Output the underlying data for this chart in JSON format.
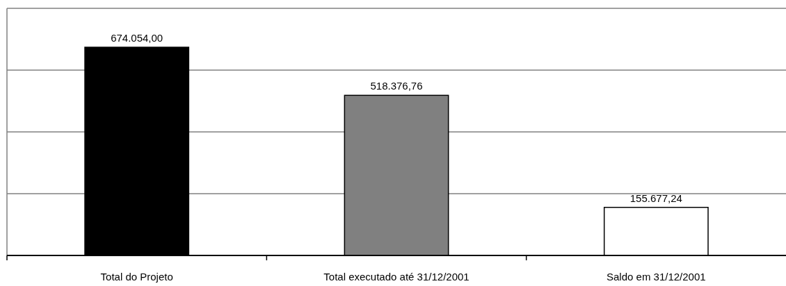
{
  "chart_data": {
    "type": "bar",
    "categories": [
      "Total do Projeto",
      "Total executado até 31/12/2001",
      "Saldo em 31/12/2001"
    ],
    "values": [
      674054,
      518376.76,
      155677.24
    ],
    "colors": [
      "#000000",
      "#808080",
      "#ffffff"
    ],
    "value_labels": [
      "674.054,00",
      "518.376,76",
      "155.677,24"
    ],
    "ylim": [
      0,
      800000
    ],
    "yticks": [
      {
        "value": 0,
        "label": null
      },
      {
        "value": 200000,
        "label": null
      },
      {
        "value": 400000,
        "label": null
      },
      {
        "value": 600000,
        "label": null
      },
      {
        "value": 800000,
        "label": null
      }
    ],
    "grid": "y",
    "tick_labels": "x"
  }
}
